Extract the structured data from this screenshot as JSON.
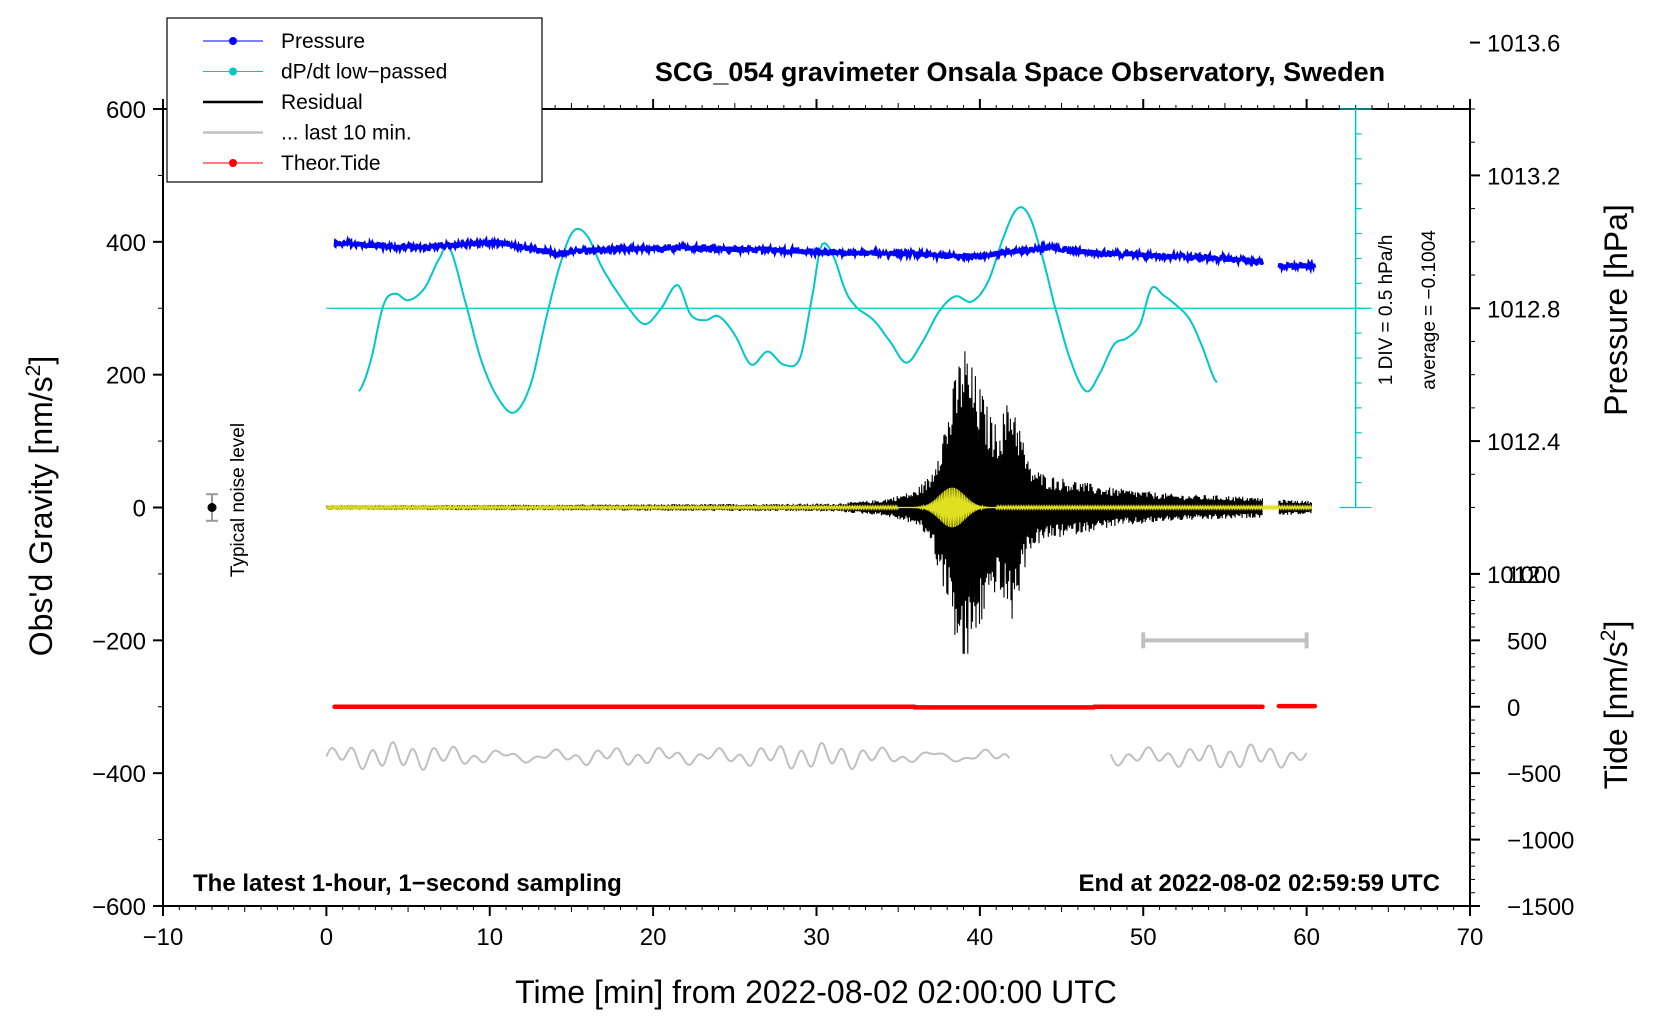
{
  "chart_data": {
    "type": "line",
    "title": "SCG_054 gravimeter Onsala Space Observatory, Sweden",
    "xlabel": "Time [min] from 2022-08-02 02:00:00 UTC",
    "ylabel_main": "Obs'd Gravity [nm/s",
    "ylabel_main_sup": "2",
    "ylabel_main_end": "]",
    "ylabel_pressure": "Pressure [hPa]",
    "ylabel_tide": "Tide [nm/s",
    "ylabel_tide_sup": "2",
    "ylabel_tide_end": "]",
    "xlim": [
      -10,
      70
    ],
    "ylim": [
      -600,
      600
    ],
    "x_ticks": [
      "−10",
      "0",
      "10",
      "20",
      "30",
      "40",
      "50",
      "60",
      "70"
    ],
    "x_tick_values": [
      -10,
      0,
      10,
      20,
      30,
      40,
      50,
      60,
      70
    ],
    "y_ticks": [
      "600",
      "400",
      "200",
      "0",
      "−200",
      "−400",
      "−600"
    ],
    "y_tick_values": [
      600,
      400,
      200,
      0,
      -200,
      -400,
      -600
    ],
    "pressure_ticks": [
      "1013.6",
      "1013.2",
      "1012.8",
      "1012.4",
      "1012.0"
    ],
    "pressure_tick_values": [
      1013.6,
      1013.2,
      1012.8,
      1012.4,
      1012.0
    ],
    "pressure_axis": {
      "ref_value": 1012.8,
      "ref_gravity": 300,
      "gravity_per_hPa": 500
    },
    "tide_ticks": [
      "1000",
      "500",
      "0",
      "−500",
      "−1000",
      "−1500"
    ],
    "tide_tick_values": [
      1000,
      500,
      0,
      -500,
      -1000,
      -1500
    ],
    "tide_axis": {
      "ref_value": 0,
      "ref_gravity": -300,
      "gravity_per_unit": 0.2
    },
    "legend": [
      {
        "label": "Pressure",
        "color": "#0000ff",
        "marker": "dot"
      },
      {
        "label": "dP/dt low−passed",
        "color": "#00c8c8",
        "marker": "dot"
      },
      {
        "label": "Residual",
        "color": "#000000",
        "marker": "line"
      },
      {
        "label": "... last 10 min.",
        "color": "#c0c0c0",
        "marker": "line"
      },
      {
        "label": "Theor.Tide",
        "color": "#ff0000",
        "marker": "dot"
      }
    ],
    "annotations": {
      "bottom_left": "The latest 1-hour, 1−second sampling",
      "bottom_right": "End at 2022-08-02 02:59:59 UTC",
      "noise": "Typical noise level",
      "div": "1 DIV = 0.5 hPa/h",
      "average": "average = −0.1004"
    },
    "noise_level": {
      "x": -7,
      "y": 0,
      "err": 20
    },
    "last10_bar": {
      "x_start": 50,
      "x_end": 60,
      "y": -200
    },
    "dpdt_scale": {
      "x": 63,
      "y_bottom": 0,
      "y_top": 600,
      "baseline": 300,
      "divisions": 16
    },
    "series": [
      {
        "name": "Pressure",
        "color": "#0000ff",
        "x": [
          0.5,
          2,
          4,
          6,
          8,
          10,
          12,
          14,
          16,
          18,
          20,
          22,
          24,
          26,
          28,
          30,
          32,
          34,
          36,
          38,
          40,
          42,
          44,
          46,
          48,
          50,
          52,
          54,
          56,
          57.3,
          58.3,
          59,
          60.5
        ],
        "y": [
          398,
          396,
          393,
          391,
          396,
          399,
          393,
          382,
          387,
          389,
          390,
          391,
          389,
          388,
          387,
          384,
          383,
          383,
          382,
          378,
          379,
          385,
          391,
          386,
          382,
          380,
          378,
          376,
          373,
          369,
          364,
          363,
          364
        ]
      },
      {
        "name": "dP/dt low−passed",
        "color": "#00c8c8",
        "x": [
          2,
          2.7,
          3.5,
          4.2,
          5,
          6,
          7,
          7.5,
          8.5,
          9.5,
          10.5,
          11.5,
          12.5,
          13.5,
          14.5,
          15.2,
          16,
          16.8,
          17.5,
          18.5,
          19.5,
          20.5,
          21.5,
          22.3,
          23.2,
          24,
          25,
          26,
          27,
          28,
          29,
          29.8,
          30.3,
          31,
          31.8,
          32.5,
          33.5,
          34.5,
          35.5,
          36.5,
          37.5,
          38.5,
          39.5,
          40.5,
          41.5,
          42.3,
          43,
          43.8,
          44.5,
          45.5,
          46.5,
          47.3,
          48.2,
          49,
          49.8,
          50.5,
          51.2,
          52,
          52.8,
          53.5,
          54.5
        ],
        "y": [
          175,
          220,
          305,
          322,
          312,
          330,
          378,
          392,
          310,
          220,
          165,
          143,
          185,
          290,
          380,
          418,
          408,
          365,
          335,
          300,
          276,
          300,
          335,
          290,
          282,
          288,
          260,
          215,
          235,
          215,
          225,
          325,
          395,
          380,
          325,
          300,
          282,
          250,
          218,
          250,
          295,
          318,
          310,
          340,
          410,
          450,
          440,
          380,
          310,
          225,
          175,
          200,
          245,
          255,
          275,
          330,
          320,
          305,
          285,
          248,
          188
        ]
      },
      {
        "name": "Residual",
        "color": "#000000",
        "envelope_x": [
          0,
          31,
          34,
          36,
          37,
          37.5,
          38,
          38.5,
          39,
          39.5,
          40,
          40.5,
          41,
          41.5,
          42,
          43,
          44,
          45,
          46,
          48,
          50,
          52,
          55,
          57.3,
          58.3,
          60.3
        ],
        "envelope_amp": [
          3,
          6,
          12,
          25,
          50,
          100,
          140,
          200,
          255,
          215,
          185,
          150,
          125,
          150,
          175,
          65,
          50,
          45,
          40,
          30,
          25,
          20,
          18,
          15,
          12,
          10
        ],
        "gap": [
          57.3,
          58.3
        ]
      },
      {
        "name": "... last 10 min.",
        "color": "#c0c0c0",
        "segments": [
          [
            0,
            41.8
          ],
          [
            48,
            60
          ]
        ],
        "offset": -375,
        "amplitude": 12
      },
      {
        "name": "Theor.Tide",
        "color": "#ff0000",
        "segments": [
          [
            0.5,
            36
          ],
          [
            36,
            47
          ],
          [
            47,
            57.3
          ],
          [
            58.3,
            60.5
          ]
        ],
        "y": [
          -300,
          -301,
          -300,
          -299
        ]
      }
    ]
  }
}
